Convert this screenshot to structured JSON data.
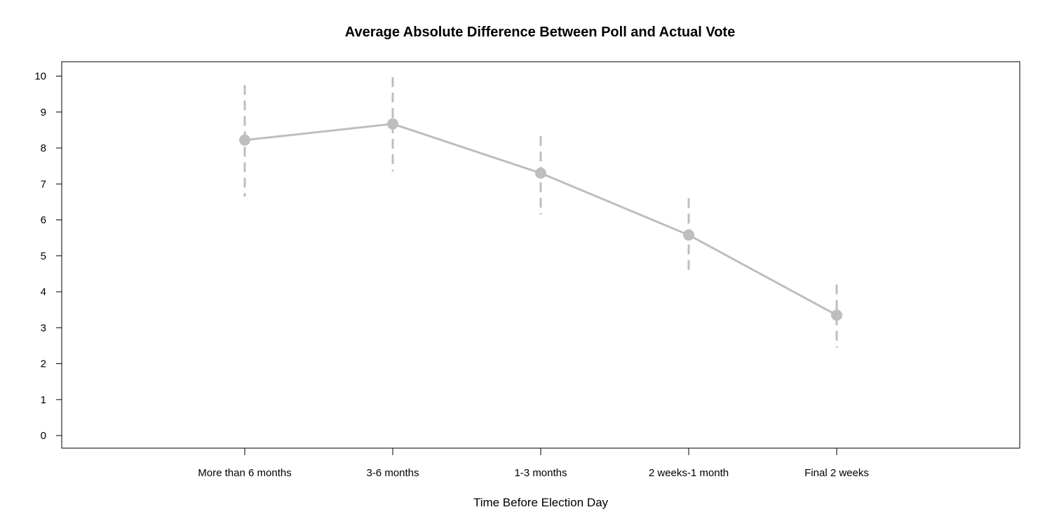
{
  "chart_data": {
    "type": "line",
    "title": "Average Absolute Difference Between Poll and Actual Vote",
    "xlabel": "Time Before Election Day",
    "ylabel": "",
    "categories": [
      "More than 6 months",
      "3-6 months",
      "1-3 months",
      "2 weeks-1 month",
      "Final 2 weeks"
    ],
    "series": [
      {
        "values": [
          8.22,
          8.67,
          7.3,
          5.58,
          3.35
        ],
        "lower": [
          6.65,
          7.35,
          6.15,
          4.55,
          2.45
        ],
        "upper": [
          9.75,
          9.97,
          8.33,
          6.6,
          4.2
        ]
      }
    ],
    "error_bar_style": "dashed",
    "ylim": [
      -0.35,
      10.4
    ],
    "yticks": [
      0,
      1,
      2,
      3,
      4,
      5,
      6,
      7,
      8,
      9,
      10
    ],
    "grid": false,
    "legend": "none",
    "colors": {
      "series": "#bebebe",
      "axis": "#000000",
      "background": "#ffffff"
    }
  }
}
